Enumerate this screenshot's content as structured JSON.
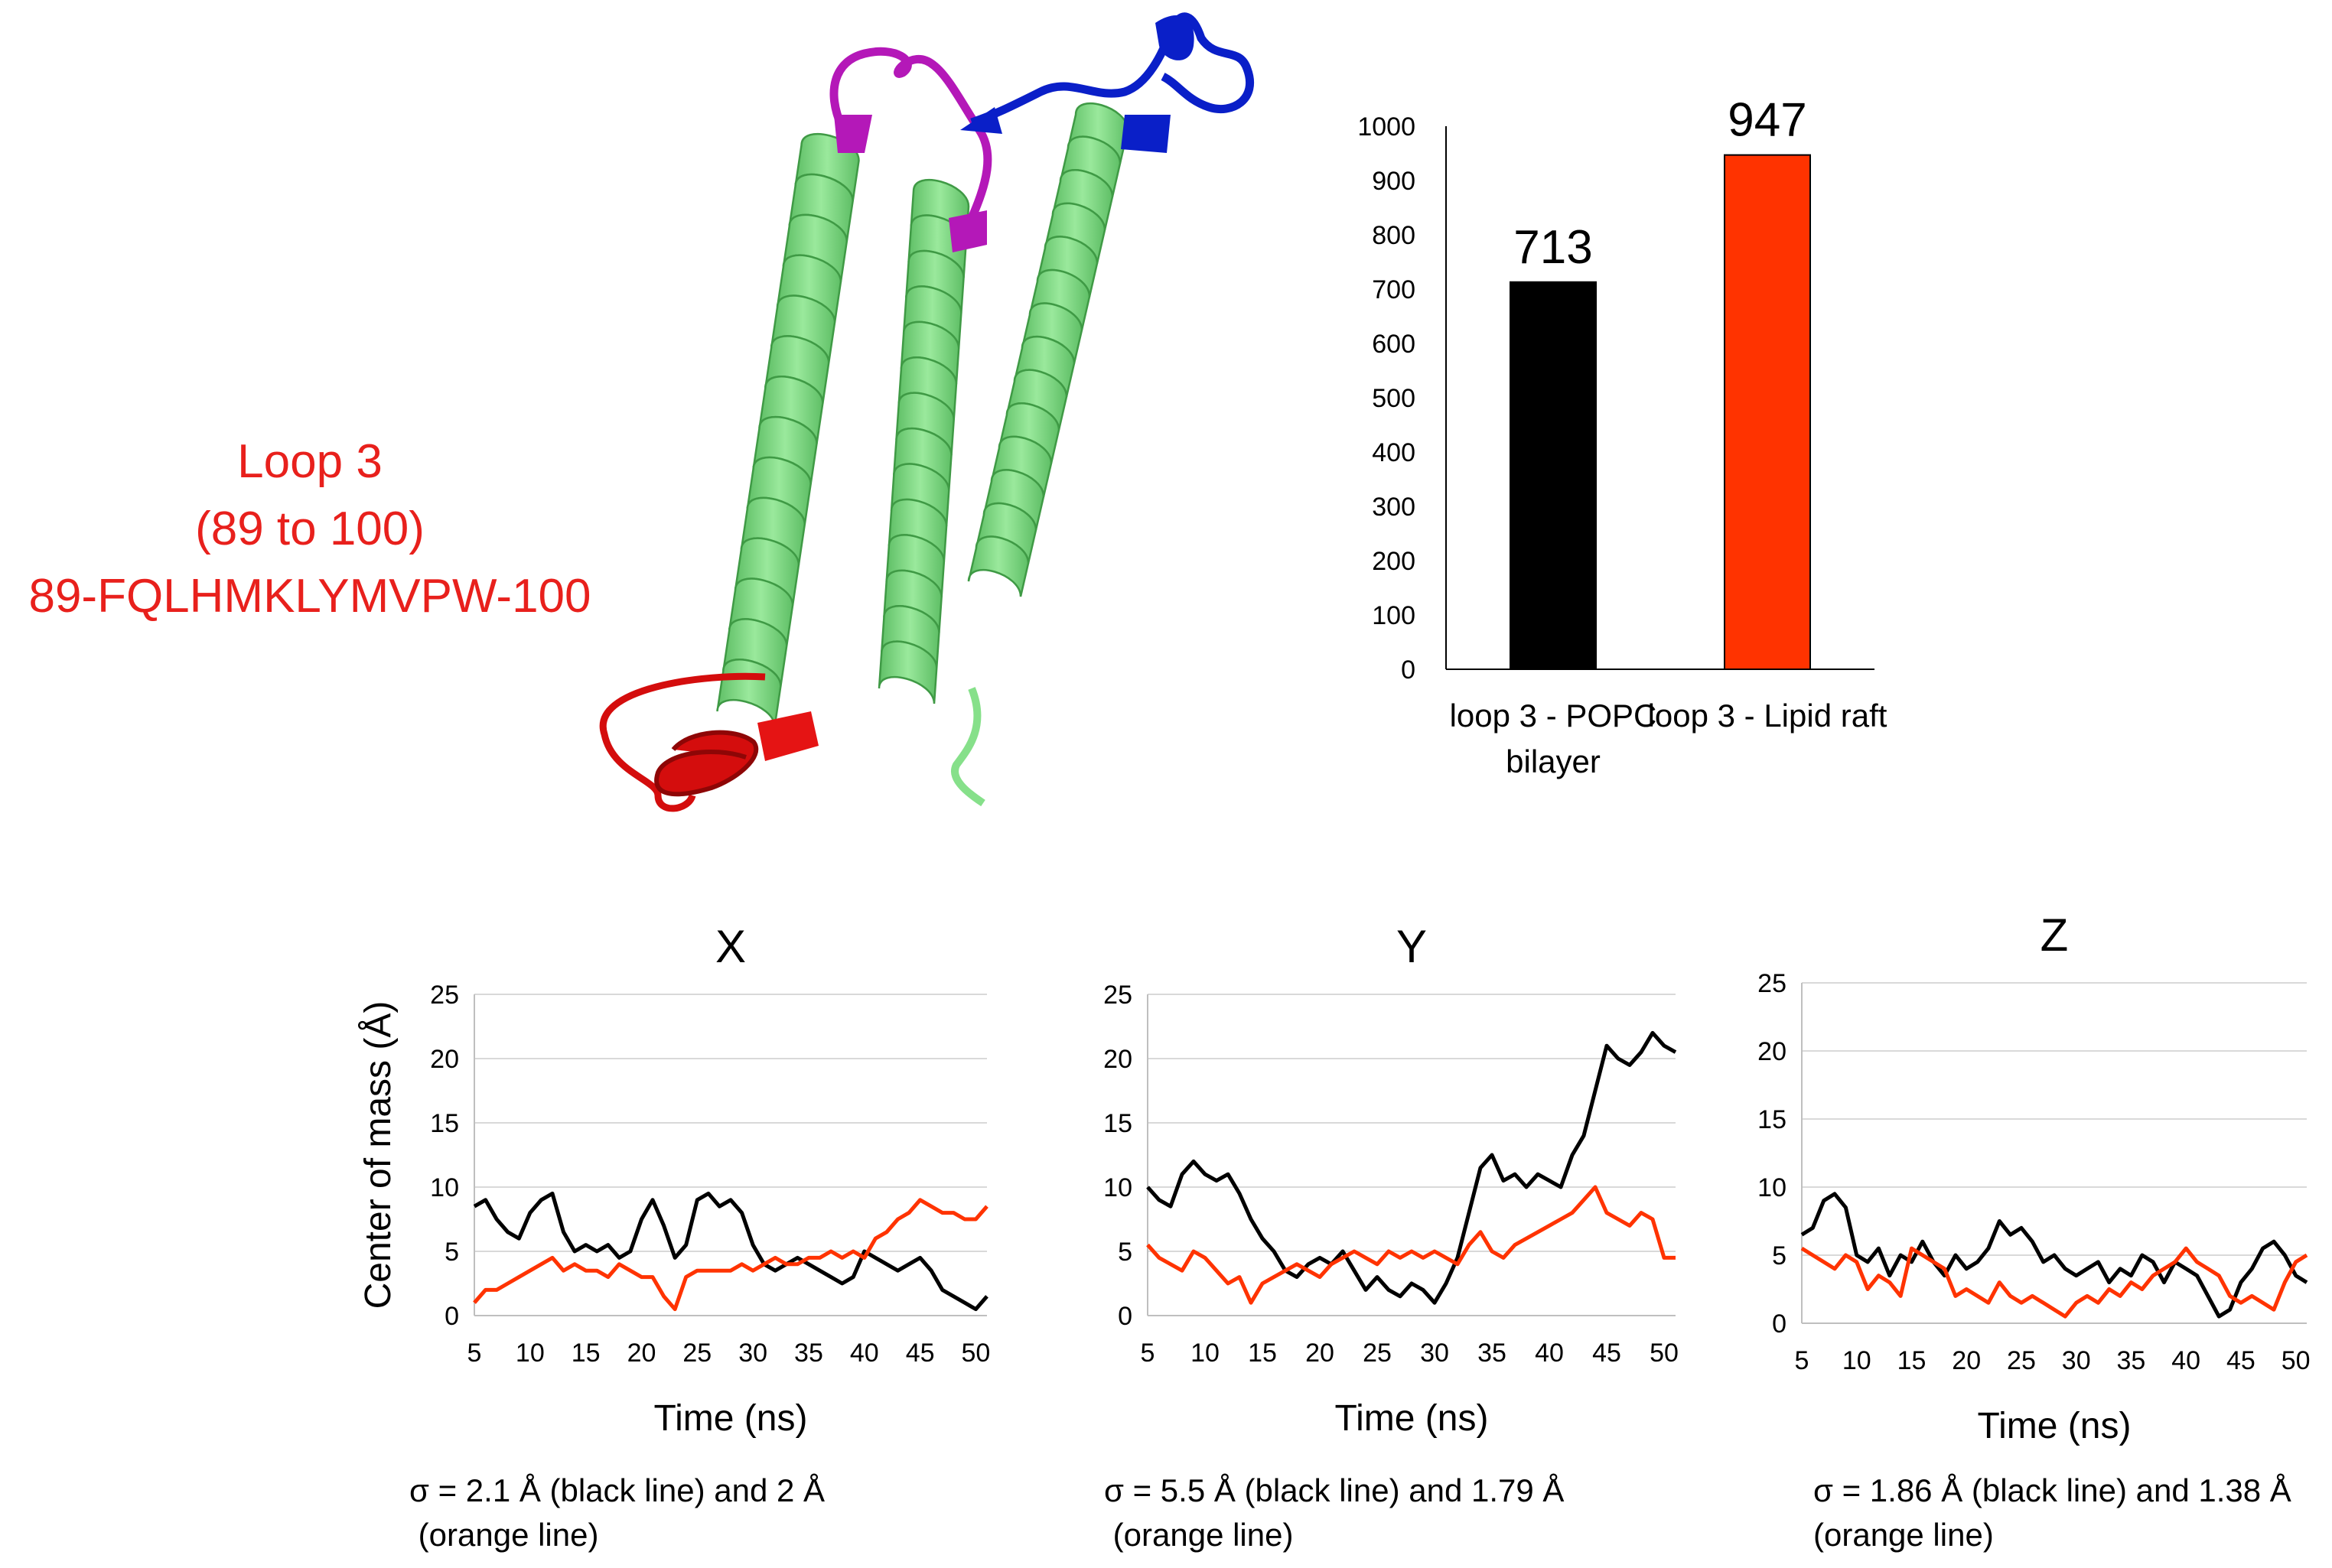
{
  "loop_label": {
    "line1": "Loop 3",
    "line2": "(89 to 100)",
    "line3": "89-FQLHMKLYMVPW-100",
    "color": "#e8201c"
  },
  "structure_colors": {
    "helix": "#86e08a",
    "helix_shade": "#3f9a45",
    "loop_red": "#d40d0d",
    "loop_magenta": "#b418b8",
    "loop_blue": "#0a1fc8"
  },
  "chart_data": [
    {
      "id": "bar",
      "type": "bar",
      "categories": [
        "loop 3 - POPC bilayer",
        "loop 3 - Lipid raft"
      ],
      "values": [
        713,
        947
      ],
      "data_labels": [
        "713",
        "947"
      ],
      "colors": [
        "#000000",
        "#ff3300"
      ],
      "ylim": [
        0,
        1000
      ],
      "yticks": [
        0,
        100,
        200,
        300,
        400,
        500,
        600,
        700,
        800,
        900,
        1000
      ],
      "grid": false
    },
    {
      "id": "x",
      "type": "line",
      "title": "X",
      "xlabel": "Time (ns)",
      "ylabel": "Center of mass (Å)",
      "xlim": [
        5,
        51
      ],
      "ylim": [
        0,
        25
      ],
      "xticks": [
        5,
        10,
        15,
        20,
        25,
        30,
        35,
        40,
        45,
        50
      ],
      "yticks": [
        0,
        5,
        10,
        15,
        20,
        25
      ],
      "grid": true,
      "series": [
        {
          "color": "#000000",
          "x": [
            5,
            6,
            7,
            8,
            9,
            10,
            11,
            12,
            13,
            14,
            15,
            16,
            17,
            18,
            19,
            20,
            21,
            22,
            23,
            24,
            25,
            26,
            27,
            28,
            29,
            30,
            31,
            32,
            33,
            34,
            35,
            36,
            37,
            38,
            39,
            40,
            41,
            42,
            43,
            44,
            45,
            46,
            47,
            48,
            49,
            50,
            51
          ],
          "y": [
            8.5,
            9.0,
            7.5,
            6.5,
            6.0,
            8.0,
            9.0,
            9.5,
            6.5,
            5.0,
            5.5,
            5.0,
            5.5,
            4.5,
            5.0,
            7.5,
            9.0,
            7.0,
            4.5,
            5.5,
            9.0,
            9.5,
            8.5,
            9.0,
            8.0,
            5.5,
            4.0,
            3.5,
            4.0,
            4.5,
            4.0,
            3.5,
            3.0,
            2.5,
            3.0,
            5.0,
            4.5,
            4.0,
            3.5,
            4.0,
            4.5,
            3.5,
            2.0,
            1.5,
            1.0,
            0.5,
            1.5
          ]
        },
        {
          "color": "#ff3300",
          "x": [
            5,
            6,
            7,
            8,
            9,
            10,
            11,
            12,
            13,
            14,
            15,
            16,
            17,
            18,
            19,
            20,
            21,
            22,
            23,
            24,
            25,
            26,
            27,
            28,
            29,
            30,
            31,
            32,
            33,
            34,
            35,
            36,
            37,
            38,
            39,
            40,
            41,
            42,
            43,
            44,
            45,
            46,
            47,
            48,
            49,
            50,
            51
          ],
          "y": [
            1.0,
            2.0,
            2.0,
            2.5,
            3.0,
            3.5,
            4.0,
            4.5,
            3.5,
            4.0,
            3.5,
            3.5,
            3.0,
            4.0,
            3.5,
            3.0,
            3.0,
            1.5,
            0.5,
            3.0,
            3.5,
            3.5,
            3.5,
            3.5,
            4.0,
            3.5,
            4.0,
            4.5,
            4.0,
            4.0,
            4.5,
            4.5,
            5.0,
            4.5,
            5.0,
            4.5,
            6.0,
            6.5,
            7.5,
            8.0,
            9.0,
            8.5,
            8.0,
            8.0,
            7.5,
            7.5,
            8.5
          ]
        }
      ],
      "sigma_text": "σ = 2.1 Å (black line) and 2 Å\n (orange line)"
    },
    {
      "id": "y",
      "type": "line",
      "title": "Y",
      "xlabel": "Time (ns)",
      "ylabel": "",
      "xlim": [
        5,
        51
      ],
      "ylim": [
        0,
        25
      ],
      "xticks": [
        5,
        10,
        15,
        20,
        25,
        30,
        35,
        40,
        45,
        50
      ],
      "yticks": [
        0,
        5,
        10,
        15,
        20,
        25
      ],
      "grid": true,
      "series": [
        {
          "color": "#000000",
          "x": [
            5,
            6,
            7,
            8,
            9,
            10,
            11,
            12,
            13,
            14,
            15,
            16,
            17,
            18,
            19,
            20,
            21,
            22,
            23,
            24,
            25,
            26,
            27,
            28,
            29,
            30,
            31,
            32,
            33,
            34,
            35,
            36,
            37,
            38,
            39,
            40,
            41,
            42,
            43,
            44,
            45,
            46,
            47,
            48,
            49,
            50,
            51
          ],
          "y": [
            10.0,
            9.0,
            8.5,
            11.0,
            12.0,
            11.0,
            10.5,
            11.0,
            9.5,
            7.5,
            6.0,
            5.0,
            3.5,
            3.0,
            4.0,
            4.5,
            4.0,
            5.0,
            3.5,
            2.0,
            3.0,
            2.0,
            1.5,
            2.5,
            2.0,
            1.0,
            2.5,
            4.5,
            8.0,
            11.5,
            12.5,
            10.5,
            11.0,
            10.0,
            11.0,
            10.5,
            10.0,
            12.5,
            14.0,
            17.5,
            21.0,
            20.0,
            19.5,
            20.5,
            22.0,
            21.0,
            20.5
          ]
        },
        {
          "color": "#ff3300",
          "x": [
            5,
            6,
            7,
            8,
            9,
            10,
            11,
            12,
            13,
            14,
            15,
            16,
            17,
            18,
            19,
            20,
            21,
            22,
            23,
            24,
            25,
            26,
            27,
            28,
            29,
            30,
            31,
            32,
            33,
            34,
            35,
            36,
            37,
            38,
            39,
            40,
            41,
            42,
            43,
            44,
            45,
            46,
            47,
            48,
            49,
            50,
            51
          ],
          "y": [
            5.5,
            4.5,
            4.0,
            3.5,
            5.0,
            4.5,
            3.5,
            2.5,
            3.0,
            1.0,
            2.5,
            3.0,
            3.5,
            4.0,
            3.5,
            3.0,
            4.0,
            4.5,
            5.0,
            4.5,
            4.0,
            5.0,
            4.5,
            5.0,
            4.5,
            5.0,
            4.5,
            4.0,
            5.5,
            6.5,
            5.0,
            4.5,
            5.5,
            6.0,
            6.5,
            7.0,
            7.5,
            8.0,
            9.0,
            10.0,
            8.0,
            7.5,
            7.0,
            8.0,
            7.5,
            4.5,
            4.5
          ]
        }
      ],
      "sigma_text": "σ = 5.5 Å (black line) and 1.79 Å\n (orange line)"
    },
    {
      "id": "z",
      "type": "line",
      "title": "Z",
      "xlabel": "Time (ns)",
      "ylabel": "",
      "xlim": [
        5,
        51
      ],
      "ylim": [
        0,
        25
      ],
      "xticks": [
        5,
        10,
        15,
        20,
        25,
        30,
        35,
        40,
        45,
        50
      ],
      "yticks": [
        0,
        5,
        10,
        15,
        20,
        25
      ],
      "grid": true,
      "series": [
        {
          "color": "#000000",
          "x": [
            5,
            6,
            7,
            8,
            9,
            10,
            11,
            12,
            13,
            14,
            15,
            16,
            17,
            18,
            19,
            20,
            21,
            22,
            23,
            24,
            25,
            26,
            27,
            28,
            29,
            30,
            31,
            32,
            33,
            34,
            35,
            36,
            37,
            38,
            39,
            40,
            41,
            42,
            43,
            44,
            45,
            46,
            47,
            48,
            49,
            50,
            51
          ],
          "y": [
            6.5,
            7.0,
            9.0,
            9.5,
            8.5,
            5.0,
            4.5,
            5.5,
            3.5,
            5.0,
            4.5,
            6.0,
            4.5,
            3.5,
            5.0,
            4.0,
            4.5,
            5.5,
            7.5,
            6.5,
            7.0,
            6.0,
            4.5,
            5.0,
            4.0,
            3.5,
            4.0,
            4.5,
            3.0,
            4.0,
            3.5,
            5.0,
            4.5,
            3.0,
            4.5,
            4.0,
            3.5,
            2.0,
            0.5,
            1.0,
            3.0,
            4.0,
            5.5,
            6.0,
            5.0,
            3.5,
            3.0
          ]
        },
        {
          "color": "#ff3300",
          "x": [
            5,
            6,
            7,
            8,
            9,
            10,
            11,
            12,
            13,
            14,
            15,
            16,
            17,
            18,
            19,
            20,
            21,
            22,
            23,
            24,
            25,
            26,
            27,
            28,
            29,
            30,
            31,
            32,
            33,
            34,
            35,
            36,
            37,
            38,
            39,
            40,
            41,
            42,
            43,
            44,
            45,
            46,
            47,
            48,
            49,
            50,
            51
          ],
          "y": [
            5.5,
            5.0,
            4.5,
            4.0,
            5.0,
            4.5,
            2.5,
            3.5,
            3.0,
            2.0,
            5.5,
            5.0,
            4.5,
            4.0,
            2.0,
            2.5,
            2.0,
            1.5,
            3.0,
            2.0,
            1.5,
            2.0,
            1.5,
            1.0,
            0.5,
            1.5,
            2.0,
            1.5,
            2.5,
            2.0,
            3.0,
            2.5,
            3.5,
            4.0,
            4.5,
            5.5,
            4.5,
            4.0,
            3.5,
            2.0,
            1.5,
            2.0,
            1.5,
            1.0,
            3.0,
            4.5,
            5.0
          ]
        }
      ],
      "sigma_text": "σ = 1.86 Å (black line) and 1.38 Å\n(orange line)"
    }
  ]
}
